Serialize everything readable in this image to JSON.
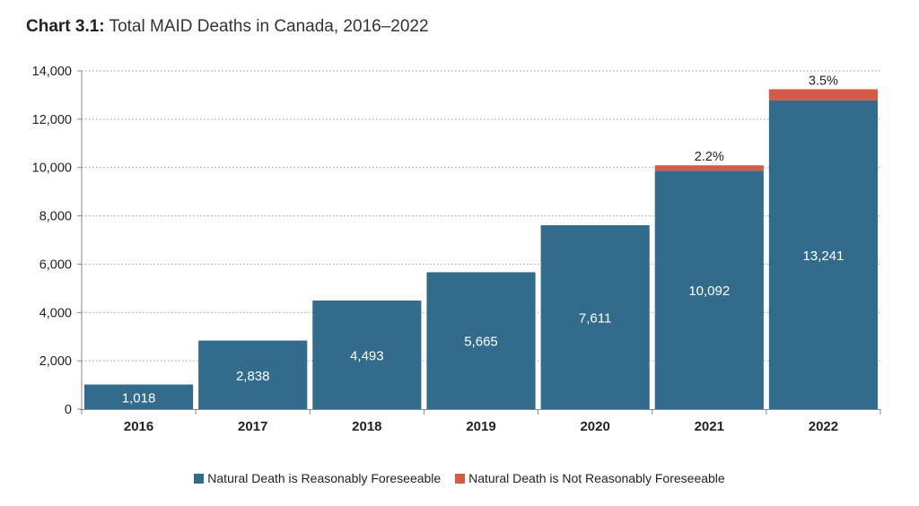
{
  "title_prefix": "Chart 3.1:",
  "title_rest": "Total MAID Deaths in Canada, 2016–2022",
  "colors": {
    "track1": "#336b8c",
    "track2": "#d35b47",
    "grid": "#9a9a9a",
    "axis": "#888888"
  },
  "chart_data": {
    "type": "bar",
    "stacked": true,
    "title": "Chart 3.1: Total MAID Deaths in Canada, 2016–2022",
    "categories": [
      "2016",
      "2017",
      "2018",
      "2019",
      "2020",
      "2021",
      "2022"
    ],
    "totals": [
      1018,
      2838,
      4493,
      5665,
      7611,
      10092,
      13241
    ],
    "total_labels": [
      "1,018",
      "2,838",
      "4,493",
      "5,665",
      "7,611",
      "10,092",
      "13,241"
    ],
    "series": [
      {
        "name": "Natural Death is Reasonably Foreseeable",
        "values": [
          1018,
          2838,
          4493,
          5665,
          7611,
          9870,
          12778
        ]
      },
      {
        "name": "Natural Death is Not Reasonably Foreseeable",
        "values": [
          0,
          0,
          0,
          0,
          0,
          222,
          463
        ]
      }
    ],
    "top_labels": [
      "",
      "",
      "",
      "",
      "",
      "2.2%",
      "3.5%"
    ],
    "ylim": [
      0,
      14000
    ],
    "yticks": [
      0,
      2000,
      4000,
      6000,
      8000,
      10000,
      12000,
      14000
    ],
    "ytick_labels": [
      "0",
      "2,000",
      "4,000",
      "6,000",
      "8,000",
      "10,000",
      "12,000",
      "14,000"
    ],
    "xlabel": "",
    "ylabel": "",
    "grid": true,
    "legend_position": "bottom"
  }
}
